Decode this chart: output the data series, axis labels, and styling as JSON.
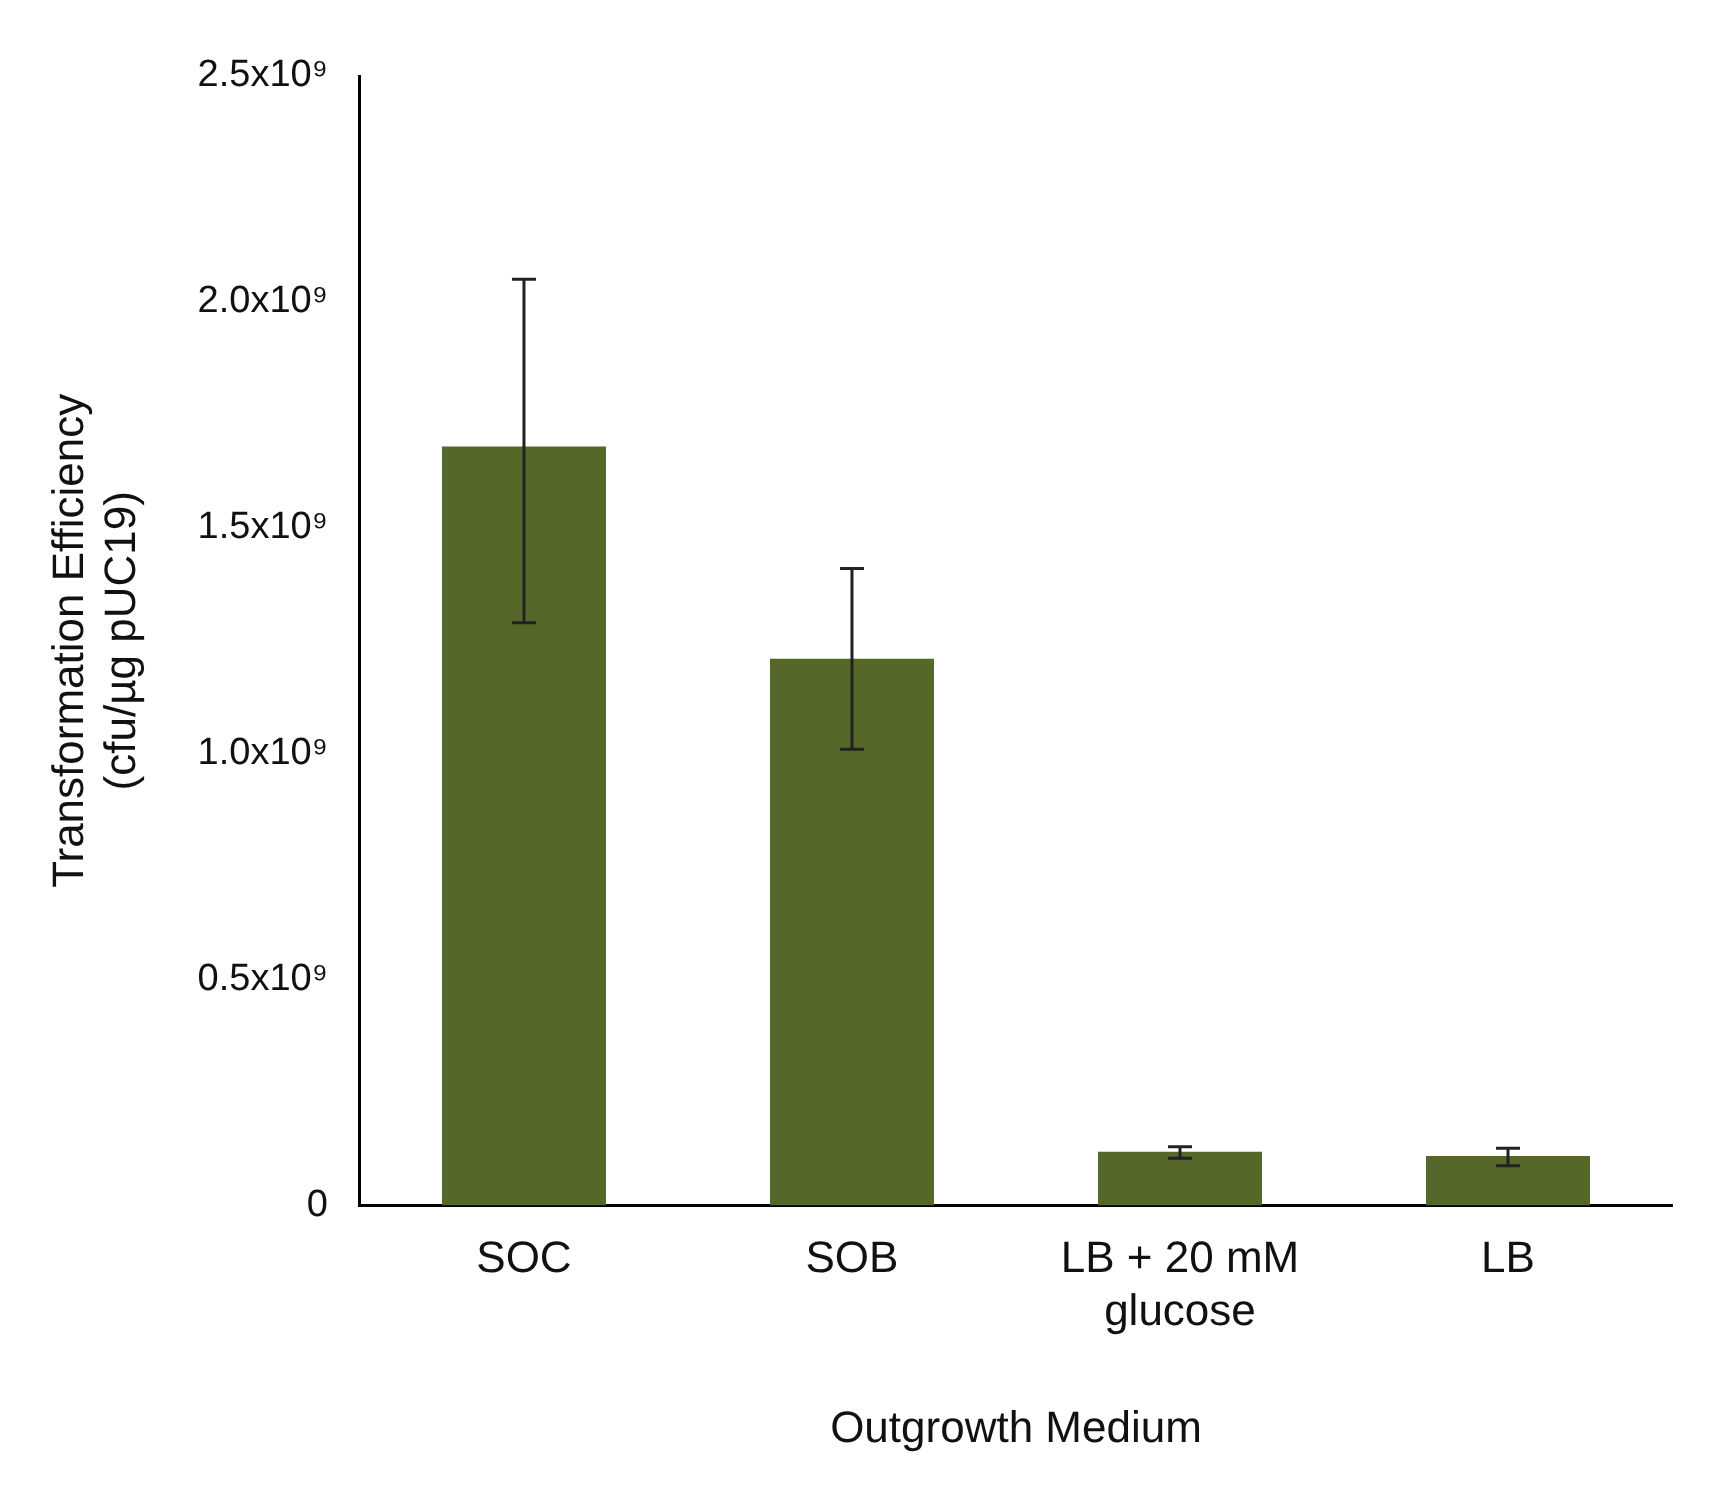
{
  "chart_data": {
    "type": "bar",
    "xlabel": "Outgrowth Medium",
    "ylabel": "Transformation Efficiency\n(cfu/µg pUC19)",
    "categories": [
      "SOC",
      "SOB",
      "LB + 20 mM glucose",
      "LB"
    ],
    "values": [
      1680000000,
      1210000000,
      119000000,
      110000000
    ],
    "errors": [
      [
        1290000000,
        2050000000
      ],
      [
        1010000000,
        1410000000
      ],
      [
        105000000,
        130000000
      ],
      [
        88000000,
        127000000
      ]
    ],
    "color": "#56672a",
    "ylim": [
      0,
      2500000000
    ],
    "yticks": [
      {
        "value": 0,
        "label": "0"
      },
      {
        "value": 500000000,
        "label": "0.5x10⁹"
      },
      {
        "value": 1000000000,
        "label": "1.0x10⁹"
      },
      {
        "value": 1500000000,
        "label": "1.5x10⁹"
      },
      {
        "value": 2000000000,
        "label": "2.0x10⁹"
      },
      {
        "value": 2500000000,
        "label": "2.5x10⁹"
      }
    ],
    "grid": false,
    "legend": false
  }
}
